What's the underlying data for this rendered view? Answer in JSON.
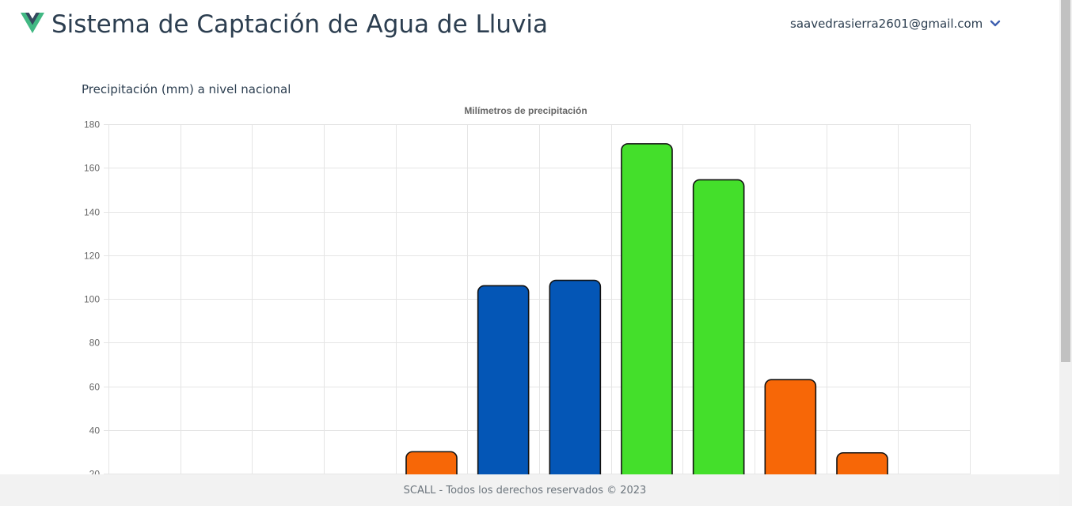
{
  "header": {
    "title": "Sistema de Captación de Agua de Lluvia",
    "user_email": "saavedrasierra2601@gmail.com",
    "logo_icon": "vue-logo-icon",
    "dropdown_icon": "chevron-down-icon"
  },
  "main": {
    "section_title": "Precipitación (mm) a nivel nacional"
  },
  "chart_data": {
    "type": "bar",
    "title": "Milímetros de precipitación",
    "xlabel": "",
    "ylabel": "",
    "ylim": [
      20,
      180
    ],
    "y_ticks": [
      20,
      40,
      60,
      80,
      100,
      120,
      140,
      160,
      180
    ],
    "grid": true,
    "values": [
      null,
      null,
      null,
      null,
      30,
      106,
      108.5,
      171,
      154.5,
      63,
      29.5,
      null
    ],
    "colors": [
      "",
      "",
      "",
      "",
      "#f76707",
      "#0456b6",
      "#0456b6",
      "#44df2b",
      "#44df2b",
      "#f76707",
      "#f76707",
      ""
    ]
  },
  "footer": {
    "text": "SCALL - Todos los derechos reservados © 2023"
  },
  "colors": {
    "text": "#2c3e50",
    "orange": "#f76707",
    "blue": "#0456b6",
    "green": "#44df2b",
    "vue_green": "#41b883",
    "vue_dark": "#34495e"
  }
}
